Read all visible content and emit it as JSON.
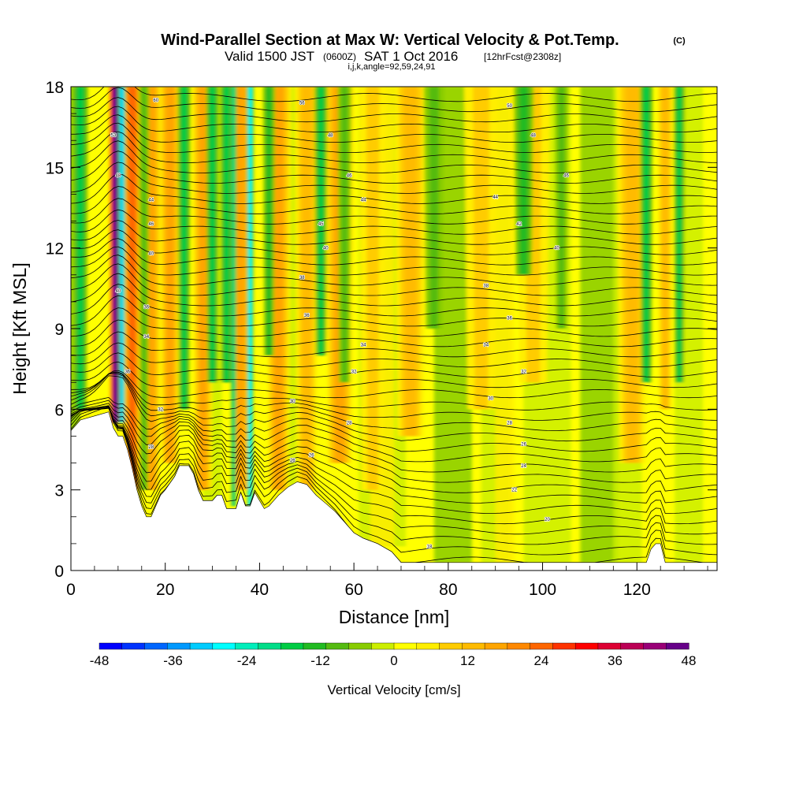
{
  "chart_data": {
    "type": "heatmap",
    "title": "Wind-Parallel Section at Max W: Vertical Velocity & Pot.Temp.",
    "title_mark": "(C)",
    "subtitle": {
      "valid": "Valid 1500 JST",
      "zulu": "(0600Z)",
      "date": "SAT 1 Oct 2016",
      "forecast": "[12hrFcst@2308z]"
    },
    "section_info": "i,j,k,angle=92,59,24,91",
    "xlabel": "Distance [nm]",
    "ylabel": "Height [Kft MSL]",
    "xlim": [
      0,
      137
    ],
    "ylim": [
      0,
      18
    ],
    "x_ticks": [
      "0",
      "20",
      "40",
      "60",
      "80",
      "100",
      "120"
    ],
    "y_ticks": [
      "0",
      "3",
      "6",
      "9",
      "12",
      "15",
      "18"
    ],
    "colorbar": {
      "label": "Vertical Velocity [cm/s]",
      "ticks": [
        "-48",
        "-36",
        "-24",
        "-12",
        "0",
        "12",
        "24",
        "36",
        "48"
      ],
      "range": [
        -48,
        48
      ],
      "colors": [
        "#0000ff",
        "#0033ff",
        "#0066ff",
        "#0099ff",
        "#00ccff",
        "#00ffff",
        "#00eebb",
        "#00dd88",
        "#00cc44",
        "#22bb22",
        "#55bb11",
        "#88cc00",
        "#ccee00",
        "#ffff00",
        "#ffee00",
        "#ffcc00",
        "#ffbb00",
        "#ffa500",
        "#ff8800",
        "#ff6600",
        "#ff3300",
        "#ff0000",
        "#dd0033",
        "#bb0055",
        "#990077",
        "#660088"
      ]
    },
    "terrain": [
      [
        0,
        5.2
      ],
      [
        2,
        5.6
      ],
      [
        4,
        5.7
      ],
      [
        6,
        5.8
      ],
      [
        8,
        5.9
      ],
      [
        9,
        5.3
      ],
      [
        10,
        5
      ],
      [
        11,
        5
      ],
      [
        12,
        4.5
      ],
      [
        13,
        3.8
      ],
      [
        14,
        3
      ],
      [
        15,
        2.4
      ],
      [
        16,
        2
      ],
      [
        17,
        2
      ],
      [
        18,
        2.4
      ],
      [
        19,
        2.8
      ],
      [
        20,
        3
      ],
      [
        22,
        3.5
      ],
      [
        23,
        3.9
      ],
      [
        25,
        3.9
      ],
      [
        26,
        3.6
      ],
      [
        27,
        3
      ],
      [
        28,
        2.6
      ],
      [
        30,
        2.6
      ],
      [
        31,
        2.8
      ],
      [
        32,
        2.8
      ],
      [
        33,
        2.3
      ],
      [
        35,
        2.3
      ],
      [
        36,
        2.9
      ],
      [
        37,
        2.4
      ],
      [
        38,
        2.4
      ],
      [
        39,
        2.9
      ],
      [
        40,
        2.6
      ],
      [
        41,
        2.3
      ],
      [
        42,
        2.4
      ],
      [
        43,
        2.6
      ],
      [
        44,
        2.8
      ],
      [
        46,
        3.1
      ],
      [
        48,
        3.3
      ],
      [
        50,
        3.2
      ],
      [
        52,
        2.8
      ],
      [
        54,
        2.5
      ],
      [
        56,
        2.2
      ],
      [
        58,
        1.8
      ],
      [
        60,
        1.4
      ],
      [
        62,
        1.2
      ],
      [
        65,
        1
      ],
      [
        68,
        0.7
      ],
      [
        70,
        0.3
      ],
      [
        80,
        0.3
      ],
      [
        100,
        0.3
      ],
      [
        110,
        0.3
      ],
      [
        122,
        0.3
      ],
      [
        123,
        0.8
      ],
      [
        124,
        1
      ],
      [
        125,
        1
      ],
      [
        126,
        0.3
      ],
      [
        137,
        0.3
      ]
    ],
    "updrafts": [
      {
        "x": 9.5,
        "w": 48,
        "width": 1.6,
        "zmin": 5.5
      },
      {
        "x": 13,
        "w": 22,
        "width": 2.2,
        "zmin": 3
      },
      {
        "x": 17,
        "w": 16,
        "width": 2.5,
        "zmin": 3
      },
      {
        "x": 21,
        "w": 14,
        "width": 2.5,
        "zmin": 4
      },
      {
        "x": 28,
        "w": 14,
        "width": 2.5,
        "zmin": 3
      },
      {
        "x": 36,
        "w": 14,
        "width": 2.5,
        "zmin": 3
      },
      {
        "x": 44,
        "w": 14,
        "width": 3,
        "zmin": 3
      },
      {
        "x": 50,
        "w": 10,
        "width": 3,
        "zmin": 3
      },
      {
        "x": 57,
        "w": 14,
        "width": 3.5,
        "zmin": 4
      },
      {
        "x": 64,
        "w": 8,
        "width": 4,
        "zmin": 3
      },
      {
        "x": 72,
        "w": 10,
        "width": 4,
        "zmin": 5
      },
      {
        "x": 87,
        "w": 6,
        "width": 5,
        "zmin": 6
      },
      {
        "x": 98,
        "w": 6,
        "width": 5,
        "zmin": 7
      },
      {
        "x": 119,
        "w": 10,
        "width": 4,
        "zmin": 4
      },
      {
        "x": 126,
        "w": 10,
        "width": 2,
        "zmin": 6
      }
    ],
    "downdrafts": [
      {
        "x": 2,
        "w": -14,
        "width": 1.8,
        "zmin": 6
      },
      {
        "x": 10.8,
        "w": -30,
        "width": 0.8,
        "zmin": 5.5
      },
      {
        "x": 15.5,
        "w": -8,
        "width": 1.5,
        "zmin": 3
      },
      {
        "x": 24,
        "w": -16,
        "width": 1.5,
        "zmin": 6
      },
      {
        "x": 30,
        "w": -14,
        "width": 1.5,
        "zmin": 7
      },
      {
        "x": 33,
        "w": -14,
        "width": 1.5,
        "zmin": 7
      },
      {
        "x": 34.5,
        "w": -18,
        "width": 0.7,
        "zmin": 2.4
      },
      {
        "x": 38,
        "w": -26,
        "width": 0.8,
        "zmin": 2.4
      },
      {
        "x": 42,
        "w": -12,
        "width": 1.5,
        "zmin": 8
      },
      {
        "x": 53,
        "w": -16,
        "width": 1.5,
        "zmin": 8
      },
      {
        "x": 58,
        "w": -8,
        "width": 2,
        "zmin": 7
      },
      {
        "x": 77,
        "w": -8,
        "width": 3,
        "zmin": 9
      },
      {
        "x": 96,
        "w": -10,
        "width": 2.5,
        "zmin": 11
      },
      {
        "x": 104,
        "w": -8,
        "width": 2,
        "zmin": 9
      },
      {
        "x": 122,
        "w": -14,
        "width": 1.5,
        "zmin": 7
      },
      {
        "x": 129,
        "w": -16,
        "width": 1.3,
        "zmin": 7
      }
    ],
    "contour_labels": [
      {
        "x": 18,
        "z": 17.5,
        "text": "60"
      },
      {
        "x": 49,
        "z": 17.4,
        "text": "56"
      },
      {
        "x": 93,
        "z": 17.3,
        "text": "50"
      },
      {
        "x": 9,
        "z": 16.2,
        "text": "53"
      },
      {
        "x": 55,
        "z": 16.2,
        "text": "48"
      },
      {
        "x": 98,
        "z": 16.2,
        "text": "48"
      },
      {
        "x": 10,
        "z": 14.7,
        "text": "48"
      },
      {
        "x": 59,
        "z": 14.7,
        "text": "46"
      },
      {
        "x": 105,
        "z": 14.7,
        "text": "46"
      },
      {
        "x": 17,
        "z": 13.8,
        "text": "44"
      },
      {
        "x": 62,
        "z": 13.8,
        "text": "44"
      },
      {
        "x": 90,
        "z": 13.9,
        "text": "44"
      },
      {
        "x": 17,
        "z": 12.9,
        "text": "46"
      },
      {
        "x": 53,
        "z": 12.9,
        "text": "45"
      },
      {
        "x": 95,
        "z": 12.9,
        "text": "42"
      },
      {
        "x": 17,
        "z": 11.8,
        "text": "40"
      },
      {
        "x": 54,
        "z": 12.0,
        "text": "40"
      },
      {
        "x": 103,
        "z": 12.0,
        "text": "40"
      },
      {
        "x": 49,
        "z": 10.9,
        "text": "38"
      },
      {
        "x": 88,
        "z": 10.6,
        "text": "38"
      },
      {
        "x": 10,
        "z": 10.4,
        "text": "40"
      },
      {
        "x": 16,
        "z": 9.8,
        "text": "36"
      },
      {
        "x": 50,
        "z": 9.5,
        "text": "36"
      },
      {
        "x": 93,
        "z": 9.4,
        "text": "36"
      },
      {
        "x": 16,
        "z": 8.7,
        "text": "34"
      },
      {
        "x": 62,
        "z": 8.4,
        "text": "34"
      },
      {
        "x": 88,
        "z": 8.4,
        "text": "34"
      },
      {
        "x": 12,
        "z": 7.4,
        "text": "36"
      },
      {
        "x": 60,
        "z": 7.4,
        "text": "32"
      },
      {
        "x": 96,
        "z": 7.4,
        "text": "32"
      },
      {
        "x": 19,
        "z": 6.0,
        "text": "32"
      },
      {
        "x": 47,
        "z": 6.3,
        "text": "30"
      },
      {
        "x": 89,
        "z": 6.4,
        "text": "30"
      },
      {
        "x": 59,
        "z": 5.5,
        "text": "28"
      },
      {
        "x": 93,
        "z": 5.5,
        "text": "28"
      },
      {
        "x": 17,
        "z": 4.6,
        "text": "28"
      },
      {
        "x": 96,
        "z": 4.7,
        "text": "26"
      },
      {
        "x": 47,
        "z": 4.1,
        "text": "26"
      },
      {
        "x": 51,
        "z": 4.3,
        "text": "26"
      },
      {
        "x": 96,
        "z": 3.9,
        "text": "24"
      },
      {
        "x": 94,
        "z": 3.0,
        "text": "22"
      },
      {
        "x": 101,
        "z": 1.9,
        "text": "20"
      },
      {
        "x": 76,
        "z": 0.9,
        "text": "18"
      }
    ]
  }
}
